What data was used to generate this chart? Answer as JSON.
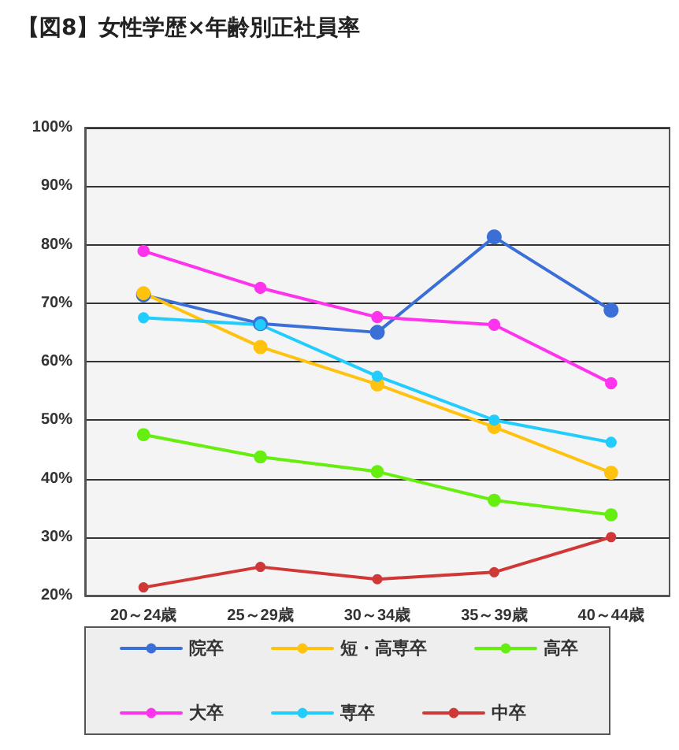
{
  "chart_data": {
    "type": "line",
    "title": "【図8】女性学歴×年齢別正社員率",
    "categories": [
      "20～24歳",
      "25～29歳",
      "30～34歳",
      "35～39歳",
      "40～44歳"
    ],
    "series": [
      {
        "name": "院卒",
        "color": "#3a6fd8",
        "values": [
          71.4,
          66.5,
          65.0,
          81.3,
          68.8
        ]
      },
      {
        "name": "短・高専卒",
        "color": "#ffc20e",
        "values": [
          71.7,
          62.5,
          56.1,
          48.8,
          41.0
        ]
      },
      {
        "name": "高卒",
        "color": "#66ee11",
        "values": [
          47.5,
          43.7,
          41.2,
          36.3,
          33.8
        ]
      },
      {
        "name": "大卒",
        "color": "#ff33ee",
        "values": [
          78.9,
          72.6,
          67.6,
          66.3,
          56.3
        ]
      },
      {
        "name": "専卒",
        "color": "#22ccff",
        "values": [
          67.5,
          66.3,
          57.5,
          50.0,
          46.2
        ]
      },
      {
        "name": "中卒",
        "color": "#d03838",
        "values": [
          21.4,
          24.9,
          22.8,
          24.0,
          30.0
        ]
      }
    ],
    "ylim": [
      20,
      100
    ],
    "yticks": [
      {
        "value": 20,
        "label": "20%"
      },
      {
        "value": 30,
        "label": "30%"
      },
      {
        "value": 40,
        "label": "40%"
      },
      {
        "value": 50,
        "label": "50%"
      },
      {
        "value": 60,
        "label": "60%"
      },
      {
        "value": 70,
        "label": "70%"
      },
      {
        "value": 80,
        "label": "80%"
      },
      {
        "value": 90,
        "label": "90%"
      },
      {
        "value": 100,
        "label": "100%"
      }
    ],
    "grid": "y",
    "legend": "bottom",
    "marker": "circle",
    "line_style": "solid"
  }
}
